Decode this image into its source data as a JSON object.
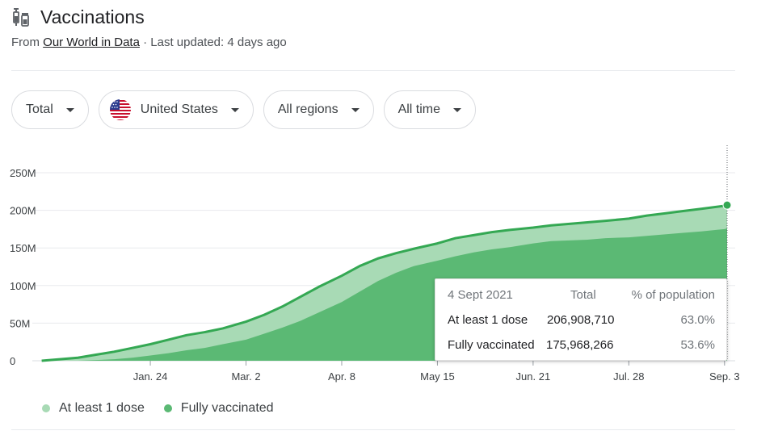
{
  "header": {
    "title": "Vaccinations",
    "icon": "syringe-vial-icon"
  },
  "source": {
    "prefix": "From",
    "link": "Our World in Data",
    "separator": "·",
    "updated": "Last updated: 4 days ago"
  },
  "filters": [
    {
      "label": "Total"
    },
    {
      "label": "United States",
      "icon": "us-flag-icon"
    },
    {
      "label": "All regions"
    },
    {
      "label": "All time"
    }
  ],
  "colors": {
    "accent": "#34a853",
    "dose1_fill": "#a8dab5",
    "dose1_line": "#34a853",
    "full_fill": "#5bb974",
    "grid": "#e8eaed"
  },
  "tooltip": {
    "date": "4 Sept 2021",
    "col_total": "Total",
    "col_pct": "% of population",
    "rows": [
      {
        "label": "At least 1 dose",
        "total": "206,908,710",
        "pct": "63.0%"
      },
      {
        "label": "Fully vaccinated",
        "total": "175,968,266",
        "pct": "53.6%"
      }
    ]
  },
  "legend": [
    {
      "label": "At least 1 dose",
      "color": "#a8dab5"
    },
    {
      "label": "Fully vaccinated",
      "color": "#5bb974"
    }
  ],
  "chart_data": {
    "type": "area",
    "title": "",
    "xlabel": "",
    "ylabel": "",
    "x_tick_labels": [
      "Jan. 24",
      "Mar. 2",
      "Apr. 8",
      "May 15",
      "Jun. 21",
      "Jul. 28",
      "Sep. 3"
    ],
    "y_tick_labels": [
      "0",
      "50M",
      "100M",
      "150M",
      "200M",
      "250M"
    ],
    "y_ticks": [
      0,
      50000000,
      100000000,
      150000000,
      200000000,
      250000000
    ],
    "ylim": [
      0,
      250000000
    ],
    "x_dates": [
      "2020-12-13",
      "2020-12-20",
      "2020-12-27",
      "2021-01-03",
      "2021-01-10",
      "2021-01-17",
      "2021-01-24",
      "2021-01-31",
      "2021-02-07",
      "2021-02-14",
      "2021-02-21",
      "2021-03-02",
      "2021-03-09",
      "2021-03-16",
      "2021-03-23",
      "2021-03-30",
      "2021-04-08",
      "2021-04-15",
      "2021-04-22",
      "2021-04-29",
      "2021-05-06",
      "2021-05-15",
      "2021-05-22",
      "2021-05-29",
      "2021-06-05",
      "2021-06-12",
      "2021-06-21",
      "2021-06-28",
      "2021-07-05",
      "2021-07-12",
      "2021-07-19",
      "2021-07-28",
      "2021-08-04",
      "2021-08-11",
      "2021-08-18",
      "2021-08-25",
      "2021-09-03",
      "2021-09-04"
    ],
    "series": [
      {
        "name": "At least 1 dose",
        "values": [
          0,
          2000000,
          4000000,
          8000000,
          12000000,
          17000000,
          22000000,
          28000000,
          34000000,
          38000000,
          43000000,
          52000000,
          61000000,
          72000000,
          85000000,
          98000000,
          113000000,
          126000000,
          136000000,
          143000000,
          149000000,
          156000000,
          163000000,
          167000000,
          171000000,
          174000000,
          177000000,
          180000000,
          182000000,
          184000000,
          186000000,
          189000000,
          193000000,
          196000000,
          199000000,
          202000000,
          206000000,
          206908710
        ]
      },
      {
        "name": "Fully vaccinated",
        "values": [
          0,
          0,
          0,
          1000000,
          2000000,
          4000000,
          7000000,
          10000000,
          14000000,
          17000000,
          22000000,
          28000000,
          36000000,
          44000000,
          53000000,
          64000000,
          78000000,
          92000000,
          106000000,
          117000000,
          126000000,
          133000000,
          139000000,
          144000000,
          148000000,
          151000000,
          156000000,
          159000000,
          160000000,
          161000000,
          163000000,
          164000000,
          166000000,
          168000000,
          170000000,
          172000000,
          175000000,
          175968266
        ]
      }
    ],
    "grid": true,
    "legend_position": "bottom-left"
  }
}
